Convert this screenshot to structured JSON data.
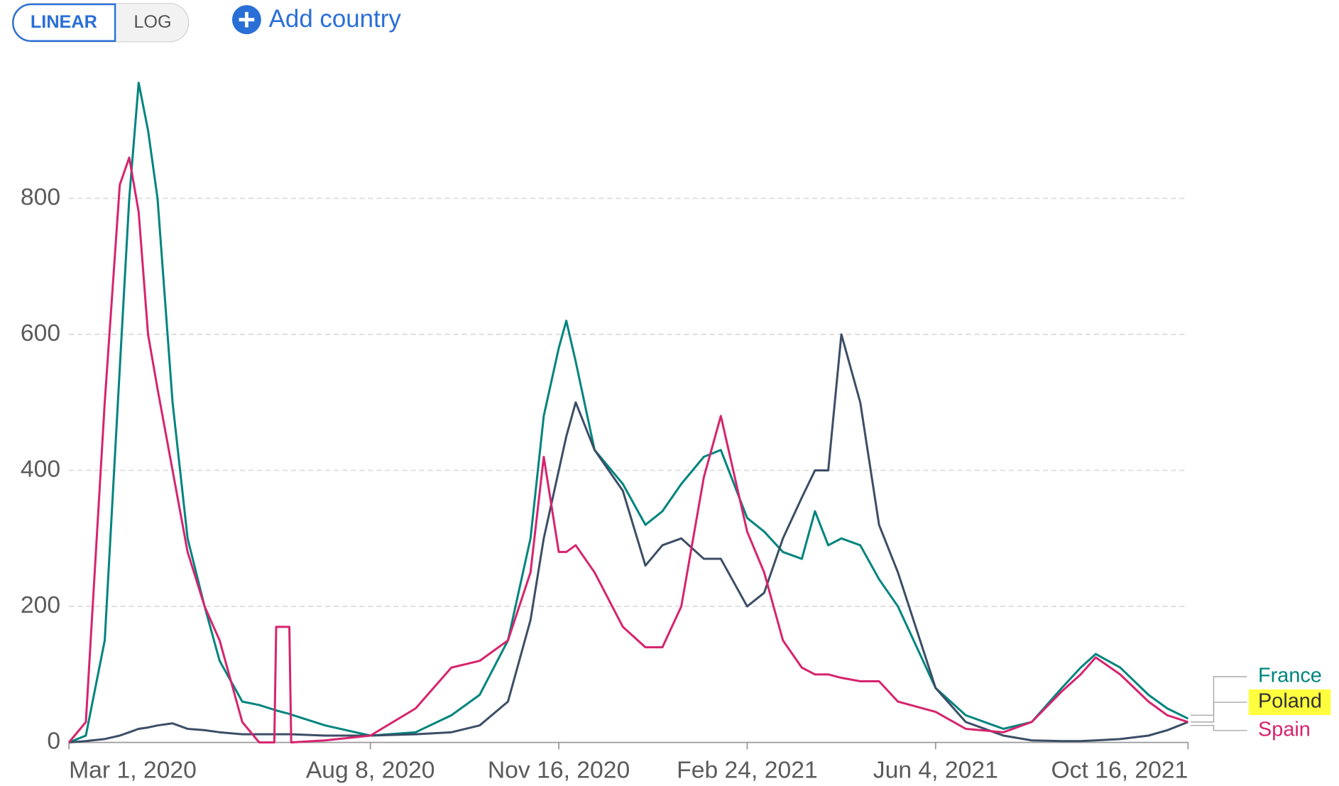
{
  "controls": {
    "linear": "LINEAR",
    "log": "LOG",
    "add_country": "Add country"
  },
  "chart_data": {
    "type": "line",
    "x": [
      "2020-03-01",
      "2020-03-10",
      "2020-03-20",
      "2020-03-28",
      "2020-04-02",
      "2020-04-07",
      "2020-04-12",
      "2020-04-17",
      "2020-04-25",
      "2020-05-03",
      "2020-05-12",
      "2020-05-20",
      "2020-06-01",
      "2020-06-10",
      "2020-06-18",
      "2020-06-19",
      "2020-06-26",
      "2020-06-27",
      "2020-07-15",
      "2020-08-08",
      "2020-09-01",
      "2020-09-20",
      "2020-10-05",
      "2020-10-20",
      "2020-11-01",
      "2020-11-08",
      "2020-11-16",
      "2020-11-20",
      "2020-11-25",
      "2020-12-05",
      "2020-12-20",
      "2021-01-01",
      "2021-01-10",
      "2021-01-20",
      "2021-02-01",
      "2021-02-10",
      "2021-02-24",
      "2021-03-05",
      "2021-03-15",
      "2021-03-25",
      "2021-04-01",
      "2021-04-08",
      "2021-04-15",
      "2021-04-25",
      "2021-05-05",
      "2021-05-15",
      "2021-06-04",
      "2021-06-20",
      "2021-07-10",
      "2021-07-25",
      "2021-08-10",
      "2021-08-20",
      "2021-08-28",
      "2021-09-10",
      "2021-09-25",
      "2021-10-05",
      "2021-10-16"
    ],
    "series": [
      {
        "name": "France",
        "color": "#00847e",
        "values": [
          0,
          10,
          150,
          550,
          800,
          970,
          900,
          800,
          500,
          300,
          200,
          120,
          60,
          55,
          48,
          47,
          42,
          41,
          25,
          10,
          15,
          40,
          70,
          150,
          300,
          480,
          580,
          620,
          560,
          430,
          380,
          320,
          340,
          380,
          420,
          430,
          330,
          310,
          280,
          270,
          340,
          290,
          300,
          290,
          240,
          200,
          80,
          40,
          20,
          30,
          80,
          110,
          130,
          110,
          70,
          50,
          35
        ]
      },
      {
        "name": "Poland",
        "color": "#3c4e66",
        "values": [
          0,
          2,
          5,
          10,
          15,
          20,
          22,
          25,
          28,
          20,
          18,
          15,
          12,
          12,
          12,
          12,
          12,
          12,
          10,
          10,
          12,
          15,
          25,
          60,
          180,
          300,
          400,
          450,
          500,
          430,
          370,
          260,
          290,
          300,
          270,
          270,
          200,
          220,
          300,
          360,
          400,
          400,
          600,
          500,
          320,
          250,
          80,
          30,
          10,
          3,
          2,
          2,
          3,
          5,
          10,
          18,
          30
        ]
      },
      {
        "name": "Spain",
        "color": "#d6246e",
        "values": [
          0,
          30,
          500,
          820,
          860,
          780,
          600,
          520,
          400,
          280,
          200,
          150,
          30,
          0,
          0,
          170,
          170,
          0,
          3,
          10,
          50,
          110,
          120,
          150,
          250,
          420,
          280,
          280,
          290,
          250,
          170,
          140,
          140,
          200,
          390,
          480,
          310,
          250,
          150,
          110,
          100,
          100,
          95,
          90,
          90,
          60,
          45,
          20,
          15,
          30,
          75,
          100,
          125,
          100,
          60,
          40,
          30
        ]
      }
    ],
    "xlim": [
      "2020-03-01",
      "2021-10-16"
    ],
    "xticks": [
      {
        "value": "2020-03-01",
        "label": "Mar 1, 2020"
      },
      {
        "value": "2020-08-08",
        "label": "Aug 8, 2020"
      },
      {
        "value": "2020-11-16",
        "label": "Nov 16, 2020"
      },
      {
        "value": "2021-02-24",
        "label": "Feb 24, 2021"
      },
      {
        "value": "2021-06-04",
        "label": "Jun 4, 2021"
      },
      {
        "value": "2021-10-16",
        "label": "Oct 16, 2021"
      }
    ],
    "ylim": [
      0,
      1000
    ],
    "yticks": [
      0,
      200,
      400,
      600,
      800
    ],
    "grid": true,
    "highlight": "Poland"
  }
}
